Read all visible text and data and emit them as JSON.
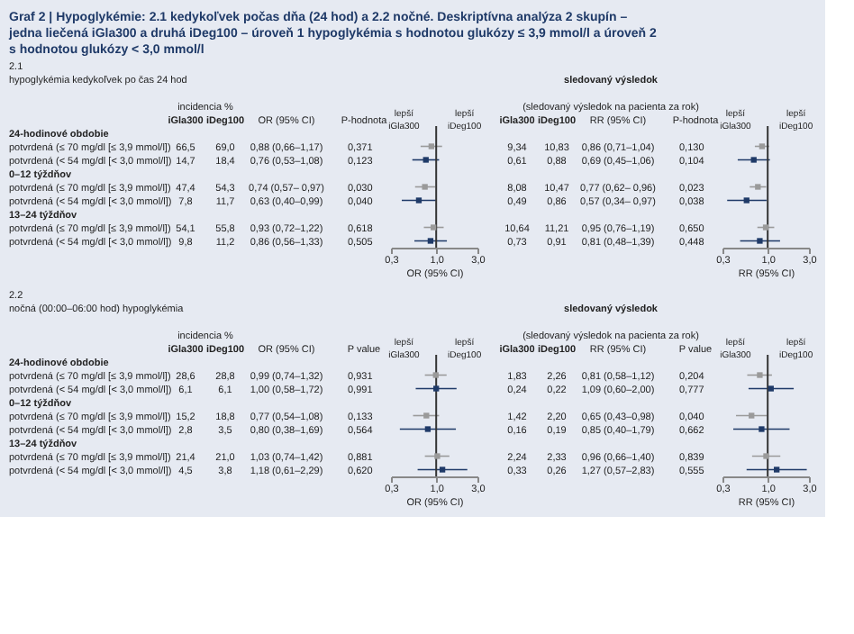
{
  "chart_data": [
    {
      "type": "scatter",
      "title": "Graf 2 | Hypoglykémie: 2.1 kedykoľvek počas dňa (24 hod) a 2.2 nočné. Deskriptívna analýza 2 skupín – jedna liečená iGla300 a druhá iDeg100 – úroveň 1 hypoglykémia s hodnotou glukózy ≤ 3,9 mmol/l a úroveň 2 s hodnotou glukózy < 3,0 mmol/l",
      "xlabel": "OR (95% CI)",
      "orientation": "horizontal",
      "log": "x",
      "marker": "square",
      "tick_labels": "x",
      "categories": [
        "24-hodinové obdobie",
        "potvrdená (≤ 70 mg/dl [≤ 3,9 mmol/l])",
        "potvrdená (< 54 mg/dl [< 3,0 mmol/l])",
        "0–12 týždňov",
        "potvrdená (≤ 70 mg/dl [≤ 3,9 mmol/l])",
        "potvrdená (< 54 mg/dl [< 3,0 mmol/l])",
        "13–24 týždňov",
        "potvrdená (≤ 70 mg/dl [≤ 3,9 mmol/l])",
        "potvrdená (< 54 mg/dl [< 3,0 mmol/l])"
      ],
      "values": [
        null,
        0.88,
        0.76,
        null,
        0.74,
        0.63,
        null,
        0.93,
        0.86
      ],
      "errors": [
        null,
        [
          0.66,
          1.17
        ],
        [
          0.53,
          1.08
        ],
        null,
        [
          0.57,
          0.97
        ],
        [
          0.4,
          0.99
        ],
        null,
        [
          0.72,
          1.22
        ],
        [
          0.56,
          1.33
        ]
      ],
      "colors": [
        null,
        "#9a9a9a",
        "#1f3a68",
        null,
        "#9a9a9a",
        "#1f3a68",
        null,
        "#9a9a9a",
        "#1f3a68"
      ],
      "value_labels": [
        null,
        "0,88 (0,66–1,17)",
        "0,76 (0,53–1,08)",
        null,
        "0,74 (0,57– 0,97)",
        "0,63 (0,40–0,99)",
        null,
        "0,93 (0,72–1,22)",
        "0,86 (0,56–1,33)"
      ],
      "annotations": [
        "2.1",
        "hypoglykémia kedykoľvek po čas 24 hod",
        "incidencia %",
        "iGla300",
        "iDeg100",
        "OR (95% CI)",
        "P-hodnota",
        "lepší iGla300",
        "lepší iDeg100",
        "66,5",
        "69,0",
        "0,371",
        "14,7",
        "18,4",
        "0,123",
        "47,4",
        "54,3",
        "0,030",
        "7,8",
        "11,7",
        "0,040",
        "54,1",
        "55,8",
        "0,618",
        "9,8",
        "11,2",
        "0,505"
      ],
      "xlim": [
        0.3,
        3
      ],
      "xticks": [
        {
          "value": 0.3,
          "label": "0,3"
        },
        {
          "value": 1,
          "label": "1,0"
        },
        {
          "value": 3,
          "label": "3,0"
        }
      ],
      "ref_lines": [
        {
          "axis": "x",
          "value": 1,
          "color": "#333333"
        }
      ]
    },
    {
      "type": "scatter",
      "title": "sledovaný výsledok",
      "subtitle": "(sledovaný výsledok na pacienta za rok)",
      "xlabel": "RR (95% CI)",
      "orientation": "horizontal",
      "log": "x",
      "marker": "square",
      "tick_labels": "x",
      "categories": [
        null,
        null,
        null,
        null,
        null,
        null,
        null,
        null,
        null
      ],
      "values": [
        null,
        0.86,
        0.69,
        null,
        0.77,
        0.57,
        null,
        0.95,
        0.81
      ],
      "errors": [
        null,
        [
          0.71,
          1.04
        ],
        [
          0.45,
          1.06
        ],
        null,
        [
          0.62,
          0.96
        ],
        [
          0.34,
          0.97
        ],
        null,
        [
          0.76,
          1.19
        ],
        [
          0.48,
          1.39
        ]
      ],
      "colors": [
        null,
        "#9a9a9a",
        "#1f3a68",
        null,
        "#9a9a9a",
        "#1f3a68",
        null,
        "#9a9a9a",
        "#1f3a68"
      ],
      "value_labels": [
        null,
        "0,86 (0,71–1,04)",
        "0,69 (0,45–1,06)",
        null,
        "0,77 (0,62– 0,96)",
        "0,57 (0,34– 0,97)",
        null,
        "0,95 (0,76–1,19)",
        "0,81 (0,48–1,39)"
      ],
      "annotations": [
        "iGla300",
        "iDeg100",
        "RR (95% CI)",
        "P-hodnota",
        "lepší iGla300",
        "lepší iDeg100",
        "9,34",
        "10,83",
        "0,130",
        "0,61",
        "0,88",
        "0,104",
        "8,08",
        "10,47",
        "0,023",
        "0,49",
        "0,86",
        "0,038",
        "10,64",
        "11,21",
        "0,650",
        "0,73",
        "0,91",
        "0,448"
      ],
      "xlim": [
        0.3,
        3
      ],
      "xticks": [
        {
          "value": 0.3,
          "label": "0,3"
        },
        {
          "value": 1,
          "label": "1,0"
        },
        {
          "value": 3,
          "label": "3,0"
        }
      ],
      "ref_lines": [
        {
          "axis": "x",
          "value": 1,
          "color": "#333333"
        }
      ]
    },
    {
      "type": "scatter",
      "xlabel": "OR (95% CI)",
      "orientation": "horizontal",
      "log": "x",
      "marker": "square",
      "tick_labels": "x",
      "categories": [
        "24-hodinové obdobie",
        "potvrdená (≤ 70 mg/dl [≤ 3,9 mmol/l])",
        "potvrdená (< 54 mg/dl [< 3,0 mmol/l])",
        "0–12 týždňov",
        "potvrdená (≤ 70 mg/dl [≤ 3,9 mmol/l])",
        "potvrdená (< 54 mg/dl [< 3,0 mmol/l])",
        "13–24 týždňov",
        "potvrdená (≤ 70 mg/dl [≤ 3,9 mmol/l])",
        "potvrdená (< 54 mg/dl [< 3,0 mmol/l])"
      ],
      "values": [
        null,
        0.99,
        1.0,
        null,
        0.77,
        0.8,
        null,
        1.03,
        1.18
      ],
      "errors": [
        null,
        [
          0.74,
          1.32
        ],
        [
          0.58,
          1.72
        ],
        null,
        [
          0.54,
          1.08
        ],
        [
          0.38,
          1.69
        ],
        null,
        [
          0.74,
          1.42
        ],
        [
          0.61,
          2.29
        ]
      ],
      "colors": [
        null,
        "#9a9a9a",
        "#1f3a68",
        null,
        "#9a9a9a",
        "#1f3a68",
        null,
        "#9a9a9a",
        "#1f3a68"
      ],
      "value_labels": [
        null,
        "0,99 (0,74–1,32)",
        "1,00 (0,58–1,72)",
        null,
        "0,77 (0,54–1,08)",
        "0,80 (0,38–1,69)",
        null,
        "1,03 (0,74–1,42)",
        "1,18 (0,61–2,29)"
      ],
      "annotations": [
        "2.2",
        "nočná (00:00–06:00 hod) hypoglykémia",
        "incidencia %",
        "iGla300",
        "iDeg100",
        "OR (95% CI)",
        "P value",
        "lepší iGla300",
        "lepší iDeg100",
        "28,6",
        "28,8",
        "0,931",
        "6,1",
        "6,1",
        "0,991",
        "15,2",
        "18,8",
        "0,133",
        "2,8",
        "3,5",
        "0,564",
        "21,4",
        "21,0",
        "0,881",
        "4,5",
        "3,8",
        "0,620"
      ],
      "xlim": [
        0.3,
        3
      ],
      "xticks": [
        {
          "value": 0.3,
          "label": "0,3"
        },
        {
          "value": 1,
          "label": "1,0"
        },
        {
          "value": 3,
          "label": "3,0"
        }
      ],
      "ref_lines": [
        {
          "axis": "x",
          "value": 1,
          "color": "#333333"
        }
      ]
    },
    {
      "type": "scatter",
      "title": "sledovaný výsledok",
      "subtitle": "(sledovaný výsledok na pacienta za rok)",
      "xlabel": "RR (95% CI)",
      "orientation": "horizontal",
      "log": "x",
      "marker": "square",
      "tick_labels": "x",
      "categories": [
        null,
        null,
        null,
        null,
        null,
        null,
        null,
        null,
        null
      ],
      "values": [
        null,
        0.81,
        1.09,
        null,
        0.65,
        0.85,
        null,
        0.96,
        1.27
      ],
      "errors": [
        null,
        [
          0.58,
          1.12
        ],
        [
          0.6,
          2.0
        ],
        null,
        [
          0.43,
          0.98
        ],
        [
          0.4,
          1.79
        ],
        null,
        [
          0.66,
          1.4
        ],
        [
          0.57,
          2.83
        ]
      ],
      "colors": [
        null,
        "#9a9a9a",
        "#1f3a68",
        null,
        "#9a9a9a",
        "#1f3a68",
        null,
        "#9a9a9a",
        "#1f3a68"
      ],
      "value_labels": [
        null,
        "0,81 (0,58–1,12)",
        "1,09 (0,60–2,00)",
        null,
        "0,65 (0,43–0,98)",
        "0,85 (0,40–1,79)",
        null,
        "0,96 (0,66–1,40)",
        "1,27 (0,57–2,83)"
      ],
      "annotations": [
        "iGla300",
        "iDeg100",
        "RR (95% CI)",
        "P value",
        "lepší iGla300",
        "lepší iDeg100",
        "1,83",
        "2,26",
        "0,204",
        "0,24",
        "0,22",
        "0,777",
        "1,42",
        "2,20",
        "0,040",
        "0,16",
        "0,19",
        "0,662",
        "2,24",
        "2,33",
        "0,839",
        "0,33",
        "0,26",
        "0,555"
      ],
      "xlim": [
        0.3,
        3
      ],
      "xticks": [
        {
          "value": 0.3,
          "label": "0,3"
        },
        {
          "value": 1,
          "label": "1,0"
        },
        {
          "value": 3,
          "label": "3,0"
        }
      ],
      "ref_lines": [
        {
          "axis": "x",
          "value": 1,
          "color": "#333333"
        }
      ]
    }
  ]
}
